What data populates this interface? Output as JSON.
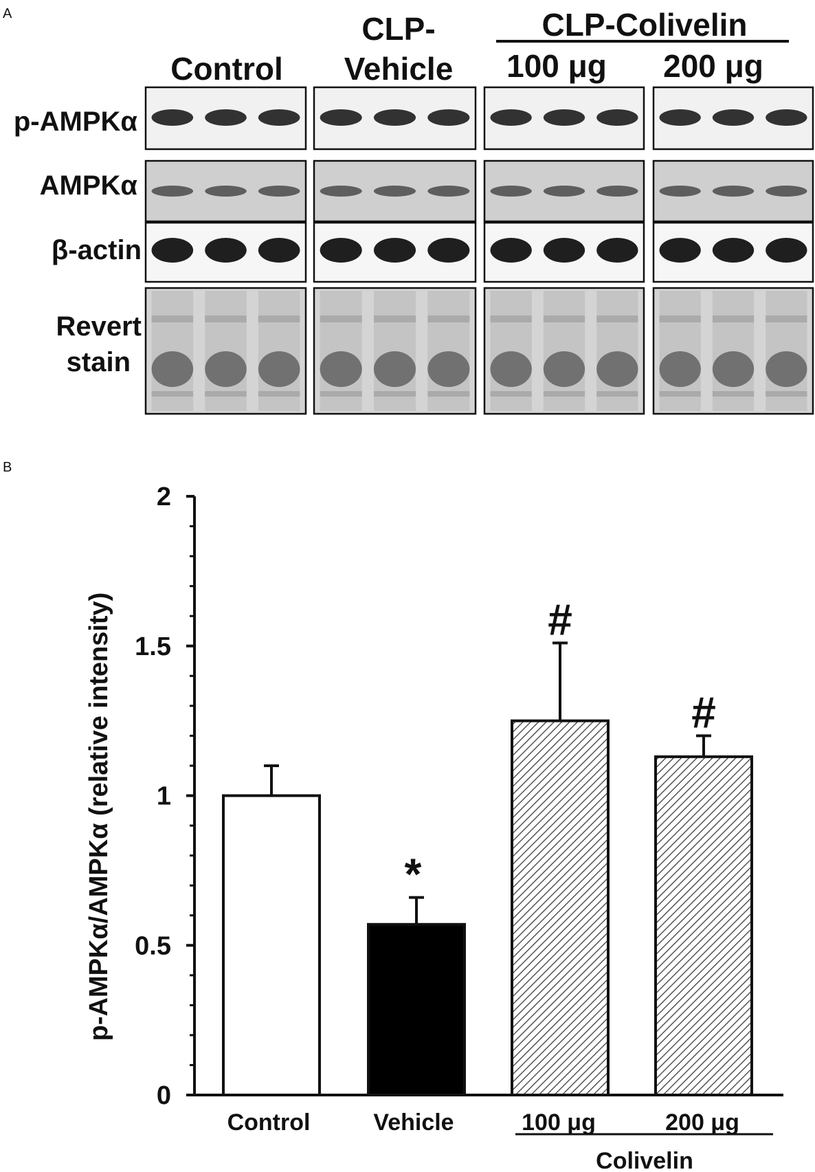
{
  "panel_a": {
    "panel_letter": "A",
    "groups": [
      {
        "label": "Control",
        "label_line2": ""
      },
      {
        "label": "CLP-",
        "label_line2": "Vehicle"
      },
      {
        "label": "100 μg",
        "label_line2": ""
      },
      {
        "label": "200 μg",
        "label_line2": ""
      }
    ],
    "bracket_label": "CLP-Colivelin",
    "rows": [
      {
        "label": "p-AMPKα",
        "label_line2": ""
      },
      {
        "label": "AMPKα",
        "label_line2": ""
      },
      {
        "label": "β-actin",
        "label_line2": ""
      },
      {
        "label": "Revert",
        "label_line2": "stain"
      }
    ]
  },
  "panel_b": {
    "panel_letter": "B"
  },
  "chart_data": {
    "type": "bar",
    "title": "",
    "xlabel": "",
    "ylabel": "p-AMPKα/AMPKα (relative intensity)",
    "ylim": [
      0,
      2
    ],
    "yticks": [
      "0",
      "0.5",
      "1",
      "1.5",
      "2"
    ],
    "categories": [
      "Control",
      "Vehicle",
      "100 μg",
      "200 μg"
    ],
    "values": [
      1.0,
      0.57,
      1.25,
      1.13
    ],
    "errors": [
      0.1,
      0.09,
      0.26,
      0.07
    ],
    "annotations": [
      "",
      "*",
      "#",
      "#"
    ],
    "bar_styles": [
      "white",
      "black",
      "hatched",
      "hatched"
    ],
    "group_bracket_label": "Colivelin"
  }
}
